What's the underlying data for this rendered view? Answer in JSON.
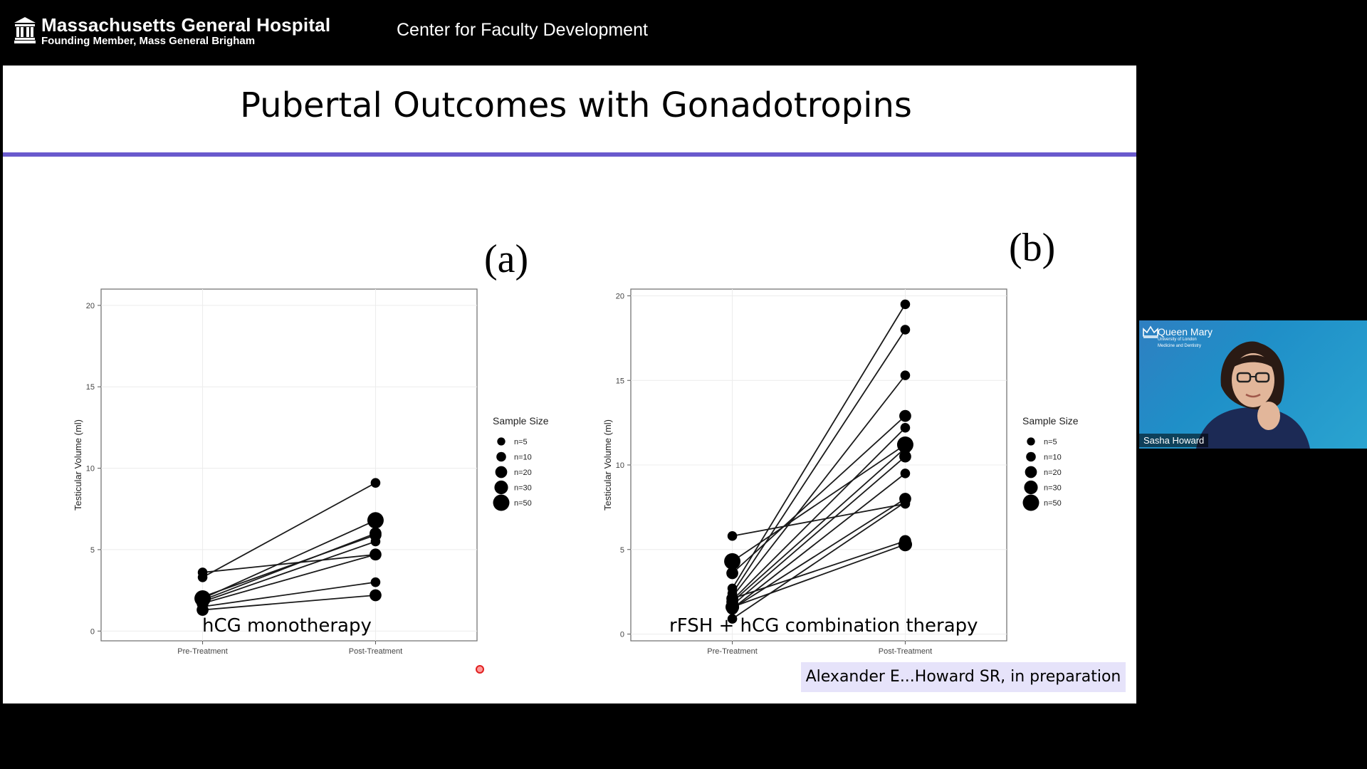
{
  "header": {
    "org_name": "Massachusetts General Hospital",
    "org_sub": "Founding Member, Mass General Brigham",
    "center_title": "Center for Faculty Development"
  },
  "slide": {
    "title": "Pubertal Outcomes with Gonadotropins",
    "accent_color": "#6a5acd",
    "citation": "Alexander E...Howard SR, in preparation"
  },
  "chart_data": [
    {
      "type": "scatter",
      "panel_label": "(a)",
      "caption": "hCG monotherapy",
      "ylabel": "Testicular Volume (ml)",
      "categories": [
        "Pre-Treatment",
        "Post-Treatment"
      ],
      "yticks": [
        0,
        5,
        10,
        15,
        20
      ],
      "ylim": [
        -0.6,
        21
      ],
      "grid": true,
      "legend": {
        "title": "Sample Size",
        "placement": "right",
        "entries": [
          {
            "label": "n=5",
            "n": 5
          },
          {
            "label": "n=10",
            "n": 10
          },
          {
            "label": "n=20",
            "n": 20
          },
          {
            "label": "n=30",
            "n": 30
          },
          {
            "label": "n=50",
            "n": 50
          }
        ]
      },
      "pairs": [
        {
          "pre": 3.6,
          "post": 4.7,
          "n": 10
        },
        {
          "pre": 3.3,
          "post": 9.1,
          "n": 10
        },
        {
          "pre": 2.0,
          "post": 6.8,
          "n": 50
        },
        {
          "pre": 1.9,
          "post": 6.0,
          "n": 20
        },
        {
          "pre": 2.1,
          "post": 5.9,
          "n": 20
        },
        {
          "pre": 1.8,
          "post": 5.5,
          "n": 10
        },
        {
          "pre": 1.7,
          "post": 4.7,
          "n": 20
        },
        {
          "pre": 1.5,
          "post": 3.0,
          "n": 10
        },
        {
          "pre": 1.3,
          "post": 2.2,
          "n": 20
        }
      ]
    },
    {
      "type": "scatter",
      "panel_label": "(b)",
      "caption": "rFSH + hCG combination therapy",
      "ylabel": "Testicular Volume (ml)",
      "categories": [
        "Pre-Treatment",
        "Post-Treatment"
      ],
      "yticks": [
        0,
        5,
        10,
        15,
        20
      ],
      "ylim": [
        -0.4,
        20.4
      ],
      "grid": true,
      "legend": {
        "title": "Sample Size",
        "placement": "right",
        "entries": [
          {
            "label": "n=5",
            "n": 5
          },
          {
            "label": "n=10",
            "n": 10
          },
          {
            "label": "n=20",
            "n": 20
          },
          {
            "label": "n=30",
            "n": 30
          },
          {
            "label": "n=50",
            "n": 50
          }
        ]
      },
      "pairs": [
        {
          "pre": 5.8,
          "post": 7.7,
          "n": 10
        },
        {
          "pre": 4.3,
          "post": 11.2,
          "n": 50
        },
        {
          "pre": 3.6,
          "post": 12.9,
          "n": 20
        },
        {
          "pre": 2.7,
          "post": 19.5,
          "n": 10
        },
        {
          "pre": 2.4,
          "post": 18.0,
          "n": 10
        },
        {
          "pre": 2.2,
          "post": 15.3,
          "n": 10
        },
        {
          "pre": 2.0,
          "post": 12.2,
          "n": 10
        },
        {
          "pre": 1.9,
          "post": 11.0,
          "n": 20
        },
        {
          "pre": 1.7,
          "post": 10.5,
          "n": 20
        },
        {
          "pre": 1.5,
          "post": 9.5,
          "n": 10
        },
        {
          "pre": 1.5,
          "post": 8.0,
          "n": 20
        },
        {
          "pre": 2.1,
          "post": 5.5,
          "n": 20
        },
        {
          "pre": 1.6,
          "post": 5.3,
          "n": 30
        },
        {
          "pre": 0.9,
          "post": 7.8,
          "n": 10
        }
      ]
    }
  ],
  "video": {
    "logo_name": "Queen Mary",
    "logo_sub1": "University of London",
    "logo_sub2": "Medicine and Dentistry",
    "speaker_name": "Sasha Howard",
    "icon": "person-avatar-icon"
  }
}
